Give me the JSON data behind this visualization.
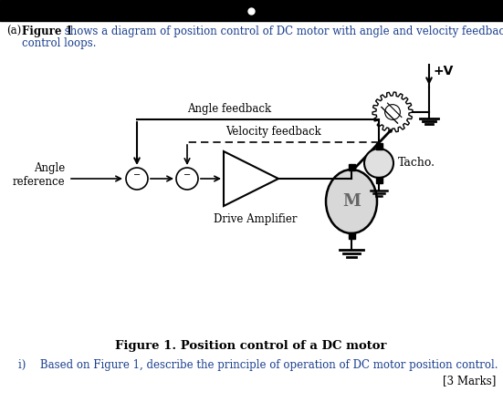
{
  "title": "Figure 1. Position control of a DC motor",
  "label_angle_ref": "Angle\nreference",
  "label_angle_fb": "Angle feedback",
  "label_vel_fb": "Velocity feedback",
  "label_drive_amp": "Drive Amplifier",
  "label_tacho": "Tacho.",
  "label_motor": "M",
  "label_vplus": "+V",
  "bg_color": "#ffffff",
  "line_color": "#000000",
  "text_color_blue": "#1a3f8f",
  "text_color_black": "#000000",
  "header_text_1": "(a) ",
  "header_text_bold": "Figure 1",
  "header_text_2": " shows a diagram of position control of DC motor with angle and velocity feedback",
  "header_text_3": "control loops.",
  "footer_text": "i)  Based on Figure 1, describe the principle of operation of DC motor position control.",
  "footer_marks": "[3 Marks]"
}
